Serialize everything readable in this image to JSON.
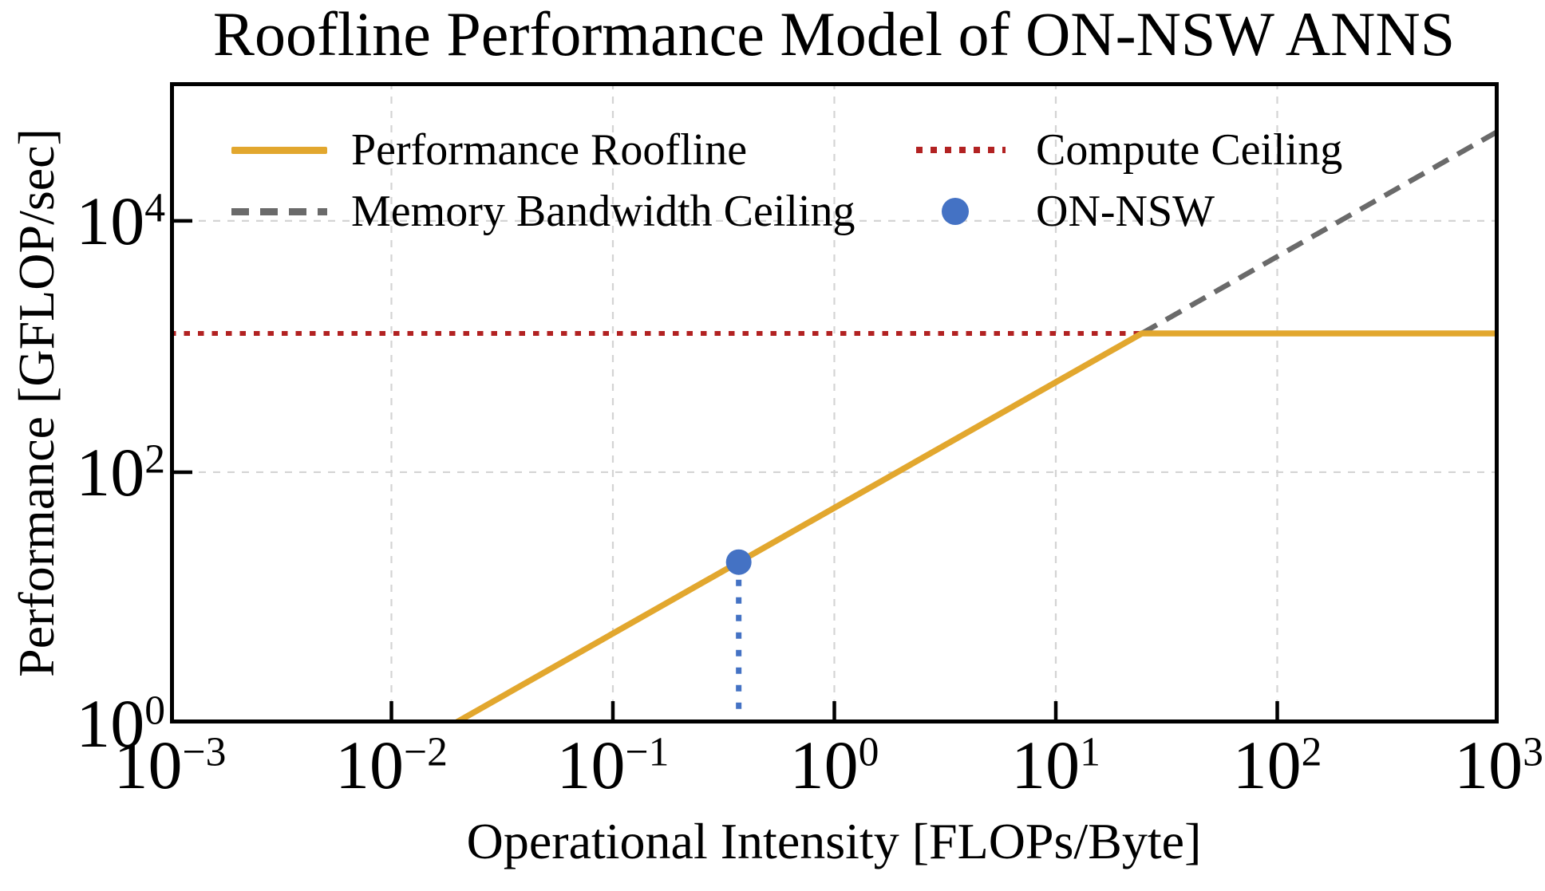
{
  "title": "Roofline Performance Model of ON-NSW ANNS",
  "axes": {
    "x_label": "Operational Intensity [FLOPs/Byte]",
    "y_label": "Performance [GFLOP/sec]"
  },
  "legend": {
    "items": [
      {
        "label": "Performance Roofline",
        "swatch": "solid-line"
      },
      {
        "label": "Compute Ceiling",
        "swatch": "dotted-line"
      },
      {
        "label": "Memory Bandwidth Ceiling",
        "swatch": "dashed-line"
      },
      {
        "label": "ON-NSW",
        "swatch": "circle"
      }
    ]
  },
  "chart_data": {
    "type": "line",
    "title": "Roofline Performance Model of ON-NSW ANNS",
    "xlabel": "Operational Intensity [FLOPs/Byte]",
    "ylabel": "Performance [GFLOP/sec]",
    "x_scale": "log",
    "y_scale": "log",
    "xlim": [
      0.001,
      1000
    ],
    "ylim": [
      1,
      127000
    ],
    "x_tick_exponents": [
      -3,
      -2,
      -1,
      0,
      1,
      2,
      3
    ],
    "y_tick_exponents": [
      0,
      2,
      4
    ],
    "grid": true,
    "legend_position": "upper left, two columns, no frame",
    "compute_ceiling_gflops": 1270,
    "memory_bandwidth_gb_per_sec": 52,
    "ridge_point": {
      "intensity_flops_per_byte": 24.4,
      "performance_gflops": 1270
    },
    "roofline_x_axis_intercept_intensity": 0.0192,
    "points": [
      {
        "name": "ON-NSW",
        "intensity_flops_per_byte": 0.37,
        "performance_gflops": 19.2,
        "drop_line": "dotted vertical line to x-axis"
      }
    ]
  },
  "colors": {
    "roofline": "#E2A72E",
    "memory_ceiling": "#6A6A6A",
    "compute_ceiling": "#B22222",
    "point": "#4472C4",
    "grid": "#D4D4D4",
    "axis": "#000000"
  }
}
